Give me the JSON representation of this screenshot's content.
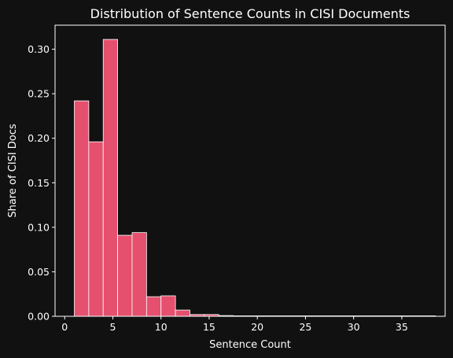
{
  "chart_data": {
    "type": "bar",
    "title": "Distribution of Sentence Counts in CISI Documents",
    "xlabel": "Sentence Count",
    "ylabel": "Share of CISI Docs",
    "xlim": [
      -1,
      39.5
    ],
    "ylim": [
      0,
      0.327
    ],
    "xticks": [
      0,
      5,
      10,
      15,
      20,
      25,
      30,
      35
    ],
    "yticks": [
      0.0,
      0.05,
      0.1,
      0.15,
      0.2,
      0.25,
      0.3
    ],
    "bin_width": 1.5,
    "bins": [
      {
        "start": 1.0,
        "value": 0.242
      },
      {
        "start": 2.5,
        "value": 0.196
      },
      {
        "start": 4.0,
        "value": 0.311
      },
      {
        "start": 5.5,
        "value": 0.091
      },
      {
        "start": 7.0,
        "value": 0.094
      },
      {
        "start": 8.5,
        "value": 0.022
      },
      {
        "start": 10.0,
        "value": 0.023
      },
      {
        "start": 11.5,
        "value": 0.007
      },
      {
        "start": 13.0,
        "value": 0.002
      },
      {
        "start": 14.5,
        "value": 0.002
      },
      {
        "start": 16.0,
        "value": 0.0008
      },
      {
        "start": 17.5,
        "value": 0.0003
      },
      {
        "start": 19.0,
        "value": 0.0002
      },
      {
        "start": 20.5,
        "value": 0.0002
      },
      {
        "start": 22.0,
        "value": 0.0001
      },
      {
        "start": 23.5,
        "value": 0.0001
      },
      {
        "start": 25.0,
        "value": 0.0001
      },
      {
        "start": 26.5,
        "value": 0.0001
      },
      {
        "start": 28.0,
        "value": 0.0001
      },
      {
        "start": 29.5,
        "value": 0.0001
      },
      {
        "start": 31.0,
        "value": 0.0001
      },
      {
        "start": 32.5,
        "value": 0.0001
      },
      {
        "start": 34.0,
        "value": 0.0001
      },
      {
        "start": 35.5,
        "value": 0.0001
      },
      {
        "start": 37.0,
        "value": 0.0001
      }
    ],
    "grid": false,
    "colors": {
      "background": "#111111",
      "bar_fill": "#e5506e",
      "bar_edge": "#ffffff",
      "axes": "#ffffff",
      "text": "#ffffff"
    }
  }
}
